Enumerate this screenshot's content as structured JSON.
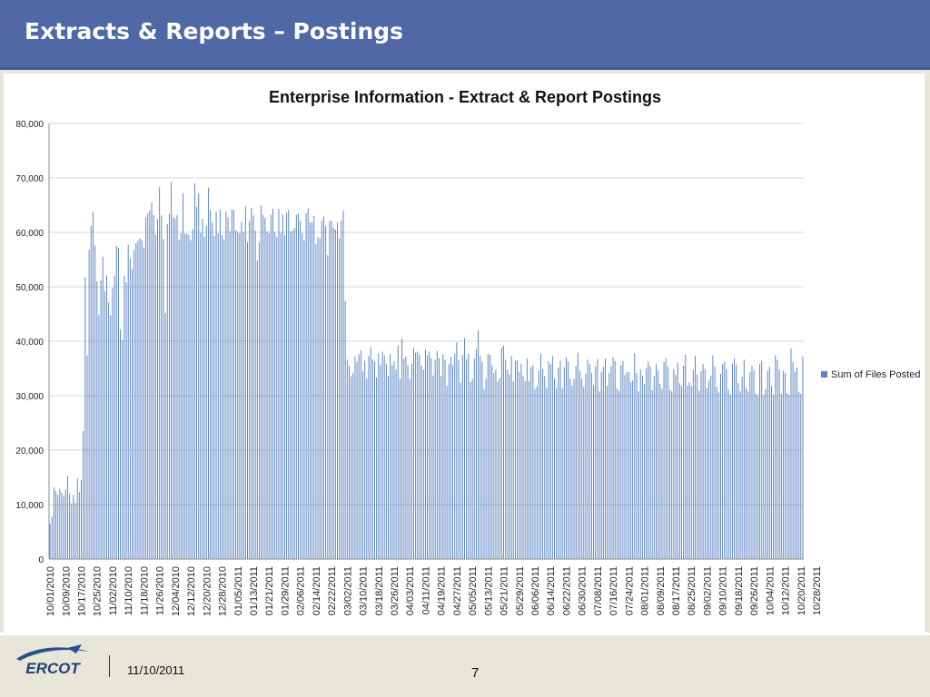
{
  "slide": {
    "title": "Extracts & Reports – Postings",
    "footer_date": "11/10/2011",
    "page_number": "7",
    "logo_text": "ERCOT",
    "header_color": "#5068a6",
    "background_color": "#e8e6d9"
  },
  "chart_data": {
    "type": "bar",
    "title": "Enterprise Information - Extract & Report Postings",
    "xlabel": "",
    "ylabel": "",
    "ylim": [
      0,
      80000
    ],
    "y_ticks": [
      "0",
      "10,000",
      "20,000",
      "30,000",
      "40,000",
      "50,000",
      "60,000",
      "70,000",
      "80,000"
    ],
    "grid": true,
    "legend_position": "right",
    "bar_color": "#5a84c4",
    "x_start": "10/01/2010",
    "x_end": "10/31/2011",
    "x_tick_labels": [
      "10/01/2010",
      "10/09/2010",
      "10/17/2010",
      "10/25/2010",
      "11/02/2010",
      "11/10/2010",
      "11/18/2010",
      "11/26/2010",
      "12/04/2010",
      "12/12/2010",
      "12/20/2010",
      "12/28/2010",
      "01/05/2011",
      "01/13/2011",
      "01/21/2011",
      "01/29/2011",
      "02/06/2011",
      "02/14/2011",
      "02/22/2011",
      "03/02/2011",
      "03/10/2011",
      "03/18/2011",
      "03/26/2011",
      "04/03/2011",
      "04/11/2011",
      "04/19/2011",
      "04/27/2011",
      "05/05/2011",
      "05/13/2011",
      "05/21/2011",
      "05/29/2011",
      "06/06/2011",
      "06/14/2011",
      "06/22/2011",
      "06/30/2011",
      "07/08/2011",
      "07/16/2011",
      "07/24/2011",
      "08/01/2011",
      "08/09/2011",
      "08/17/2011",
      "08/25/2011",
      "09/02/2011",
      "09/10/2011",
      "09/18/2011",
      "09/26/2011",
      "10/04/2011",
      "10/12/2011",
      "10/20/2011",
      "10/28/2011"
    ],
    "series": [
      {
        "name": "Sum of Files Posted",
        "values": [
          6500,
          7800,
          13200,
          12500,
          11800,
          12900,
          12200,
          11600,
          12800,
          15300,
          12000,
          10200,
          11800,
          10300,
          14800,
          12300,
          14500,
          23500,
          51800,
          37400,
          56800,
          61200,
          63800,
          57600,
          51000,
          44800,
          51200,
          55500,
          49200,
          52100,
          47100,
          44800,
          49800,
          52000,
          57500,
          57200,
          42200,
          40200,
          52000,
          50800,
          57700,
          55200,
          53200,
          56800,
          58000,
          58500,
          58900,
          58600,
          57200,
          62800,
          63500,
          64000,
          65500,
          63200,
          59600,
          62400,
          68300,
          63100,
          58800,
          45200,
          61500,
          63400,
          69200,
          62800,
          62500,
          63200,
          58600,
          59800,
          67200,
          59800,
          59800,
          59500,
          58500,
          60600,
          69000,
          64700,
          67200,
          59900,
          62500,
          59200,
          61200,
          68200,
          64100,
          61800,
          59300,
          63800,
          59800,
          64200,
          59500,
          58700,
          63800,
          62800,
          60200,
          64200,
          64100,
          60400,
          60100,
          59800,
          61900,
          60100,
          64800,
          58200,
          62100,
          64500,
          63100,
          60300,
          54800,
          58200,
          64900,
          63200,
          62700,
          60200,
          59800,
          63200,
          64300,
          60100,
          59100,
          64300,
          59900,
          63200,
          59500,
          63600,
          64100,
          60100,
          60300,
          60800,
          63200,
          63400,
          62100,
          59800,
          58500,
          63500,
          64400,
          61800,
          61800,
          63000,
          57800,
          59100,
          58900,
          62200,
          62900,
          61200,
          55800,
          62100,
          62100,
          60800,
          60500,
          61800,
          58900,
          62200,
          64000,
          47400,
          36600,
          35500,
          33600,
          34200,
          37200,
          36200,
          37600,
          38300,
          34500,
          36400,
          33200,
          37300,
          38900,
          36700,
          36300,
          33400,
          37800,
          35600,
          38100,
          37400,
          35800,
          33600,
          37700,
          35600,
          36300,
          34800,
          39200,
          33100,
          40500,
          36800,
          37200,
          35600,
          33100,
          35900,
          38700,
          37900,
          38100,
          37500,
          35500,
          34800,
          38500,
          37400,
          38100,
          36900,
          33700,
          36600,
          38200,
          36900,
          33600,
          37600,
          36600,
          31800,
          35800,
          37100,
          35600,
          37700,
          39800,
          36500,
          32400,
          37500,
          40600,
          36700,
          37700,
          32500,
          33100,
          36800,
          38600,
          42000,
          37300,
          36200,
          31200,
          33100,
          37700,
          37500,
          35600,
          34200,
          34800,
          32600,
          33300,
          38800,
          39200,
          36600,
          34800,
          33900,
          37300,
          32600,
          36400,
          36500,
          34300,
          35800,
          33600,
          32700,
          36800,
          32700,
          35200,
          35600,
          31200,
          31700,
          34600,
          37700,
          34900,
          33600,
          31400,
          36300,
          35800,
          37300,
          33200,
          31400,
          35200,
          36400,
          31300,
          35200,
          37000,
          36300,
          33200,
          31900,
          33100,
          35500,
          37900,
          34600,
          33100,
          31600,
          34000,
          36600,
          35800,
          34200,
          31900,
          35400,
          36700,
          30800,
          34300,
          35300,
          36800,
          31900,
          34200,
          35400,
          37100,
          36400,
          31300,
          30900,
          35600,
          36400,
          33800,
          34300,
          34400,
          32500,
          32800,
          37800,
          34200,
          30800,
          34800,
          33600,
          32100,
          35100,
          36300,
          35400,
          31000,
          33600,
          35800,
          34700,
          32200,
          31300,
          36200,
          36900,
          35300,
          31200,
          30800,
          34900,
          33800,
          36100,
          32300,
          31800,
          35500,
          37500,
          31900,
          32500,
          31800,
          34800,
          37300,
          33900,
          30900,
          34500,
          35800,
          34900,
          31500,
          32800,
          33700,
          37400,
          35400,
          31600,
          30600,
          34000,
          35800,
          36200,
          34900,
          31100,
          30200,
          35900,
          36900,
          35700,
          32300,
          30800,
          33500,
          36600,
          31400,
          30800,
          34300,
          35500,
          34700,
          30400,
          30100,
          35800,
          36400,
          30200,
          31200,
          34600,
          35300,
          31800,
          30200,
          37400,
          36600,
          34800,
          30400,
          34600,
          34200,
          30500,
          30200,
          38700,
          36200,
          34400,
          35200,
          30700,
          30300,
          37200
        ]
      }
    ]
  }
}
